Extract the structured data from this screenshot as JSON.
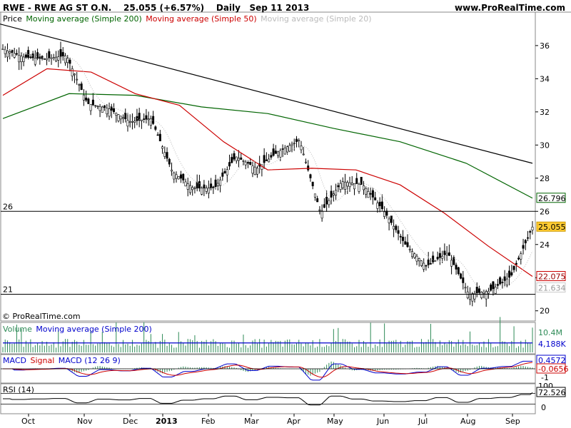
{
  "header": {
    "instrument": "RWE - RWE AG ST O.N.",
    "last": "25.055 (+6.57%)",
    "period": "Daily",
    "date": "Sep 11 2013",
    "site": "www.ProRealTime.com"
  },
  "legends": {
    "price": [
      "Price",
      "Moving average (Simple 200)",
      "Moving average (Simple 50)",
      "Moving average (Simple 20)"
    ],
    "volume": [
      "Volume",
      "Moving average (Simple 200)"
    ],
    "macd": [
      "MACD",
      "Signal",
      "MACD (12 26 9)"
    ],
    "rsi": "RSI (14)"
  },
  "copyright": "© ProRealTime.com",
  "colors": {
    "candle_up": "#ffffff",
    "candle_down": "#000000",
    "ma200": "#006400",
    "ma50": "#cc0000",
    "ma20": "#bbbbbb",
    "trendline": "#000000",
    "volume": "#2e8b57",
    "volume_ma": "#0000cc",
    "macd": "#0000cc",
    "signal": "#cc0000",
    "rsi": "#000000"
  },
  "chart_data": [
    {
      "type": "candlestick",
      "title": "RWE - RWE AG ST O.N.",
      "ylim": [
        19.6,
        37.2
      ],
      "yticks": [
        20,
        22,
        24,
        26,
        28,
        30,
        32,
        34,
        36
      ],
      "xticks": [
        "Oct",
        "Nov",
        "Dec",
        "2013",
        "Feb",
        "Mar",
        "Apr",
        "May",
        "Jun",
        "Jul",
        "Aug",
        "Sep"
      ],
      "horizontal_lines": [
        {
          "value": 26,
          "label": "26"
        },
        {
          "value": 21,
          "label": "21"
        }
      ],
      "trendline": {
        "from": {
          "date": "Sep 2012",
          "value": 37.3
        },
        "to": {
          "date": "Sep 11 2013",
          "value": 28.9
        }
      },
      "last_value_labels": [
        {
          "series": "Moving average (Simple 200)",
          "label": "26.796"
        },
        {
          "series": "Close",
          "label": "25.055"
        },
        {
          "series": "Moving average (Simple 50)",
          "label": "22.075"
        },
        {
          "series": "Moving average (Simple 20)",
          "label": "21.634"
        }
      ],
      "close": [
        {
          "date": "Sep 2012",
          "value": 35.8
        },
        {
          "date": "Oct 2012",
          "value": 35.3
        },
        {
          "date": "mid Oct 2012",
          "value": 35.2
        },
        {
          "date": "Nov 2012",
          "value": 35.4
        },
        {
          "date": "mid Nov 2012",
          "value": 32.5
        },
        {
          "date": "Dec 2012",
          "value": 32.2
        },
        {
          "date": "mid Dec 2012",
          "value": 31.4
        },
        {
          "date": "Jan 2013",
          "value": 31.6
        },
        {
          "date": "mid Jan 2013",
          "value": 28.4
        },
        {
          "date": "Feb 2013",
          "value": 27.4
        },
        {
          "date": "mid Feb 2013",
          "value": 27.4
        },
        {
          "date": "Mar 2013",
          "value": 29.3
        },
        {
          "date": "mid Mar 2013",
          "value": 28.6
        },
        {
          "date": "Apr 2013",
          "value": 29.6
        },
        {
          "date": "mid Apr 2013",
          "value": 30.3
        },
        {
          "date": "late Apr 2013",
          "value": 25.9
        },
        {
          "date": "May 2013",
          "value": 27.8
        },
        {
          "date": "mid May 2013",
          "value": 27.6
        },
        {
          "date": "Jun 2013",
          "value": 26.0
        },
        {
          "date": "mid Jun 2013",
          "value": 24.0
        },
        {
          "date": "Jul 2013",
          "value": 22.7
        },
        {
          "date": "mid Jul 2013",
          "value": 23.5
        },
        {
          "date": "Aug 2013",
          "value": 21.0
        },
        {
          "date": "mid Aug 2013",
          "value": 21.2
        },
        {
          "date": "Sep 2013",
          "value": 22.1
        },
        {
          "date": "Sep 11 2013",
          "value": 25.055
        }
      ],
      "ma200": [
        {
          "date": "Sep 2012",
          "value": 31.6
        },
        {
          "date": "Nov 2012",
          "value": 33.1
        },
        {
          "date": "Dec 2012",
          "value": 33.0
        },
        {
          "date": "Feb 2013",
          "value": 32.3
        },
        {
          "date": "Apr 2013",
          "value": 31.9
        },
        {
          "date": "Jun 2013",
          "value": 31.0
        },
        {
          "date": "Jul 2013",
          "value": 30.2
        },
        {
          "date": "Aug 2013",
          "value": 28.9
        },
        {
          "date": "Sep 11 2013",
          "value": 26.796
        }
      ],
      "ma50": [
        {
          "date": "Sep 2012",
          "value": 33.0
        },
        {
          "date": "Oct 2012",
          "value": 34.6
        },
        {
          "date": "Nov 2012",
          "value": 34.4
        },
        {
          "date": "Dec 2012",
          "value": 33.1
        },
        {
          "date": "Jan 2013",
          "value": 32.4
        },
        {
          "date": "Feb 2013",
          "value": 30.2
        },
        {
          "date": "Mar 2013",
          "value": 28.5
        },
        {
          "date": "Apr 2013",
          "value": 28.6
        },
        {
          "date": "May 2013",
          "value": 28.5
        },
        {
          "date": "Jun 2013",
          "value": 27.6
        },
        {
          "date": "Jul 2013",
          "value": 25.9
        },
        {
          "date": "Aug 2013",
          "value": 23.9
        },
        {
          "date": "Sep 11 2013",
          "value": 22.075
        }
      ]
    },
    {
      "type": "bar",
      "title": "Volume",
      "tick_labels": [
        "10.4M",
        "4,188K"
      ],
      "ma_level": 4.188
    },
    {
      "type": "line",
      "title": "MACD (12 26 9)",
      "tick_labels": [
        "0.4572",
        "-0.0656",
        "-1"
      ],
      "series": [
        {
          "name": "MACD",
          "last": 0.4572
        },
        {
          "name": "Signal",
          "last": -0.0656
        }
      ]
    },
    {
      "type": "line",
      "title": "RSI (14)",
      "yticks": [
        0,
        100
      ],
      "tick_labels": [
        "100",
        "72.526",
        "0"
      ],
      "last": 72.526
    }
  ]
}
